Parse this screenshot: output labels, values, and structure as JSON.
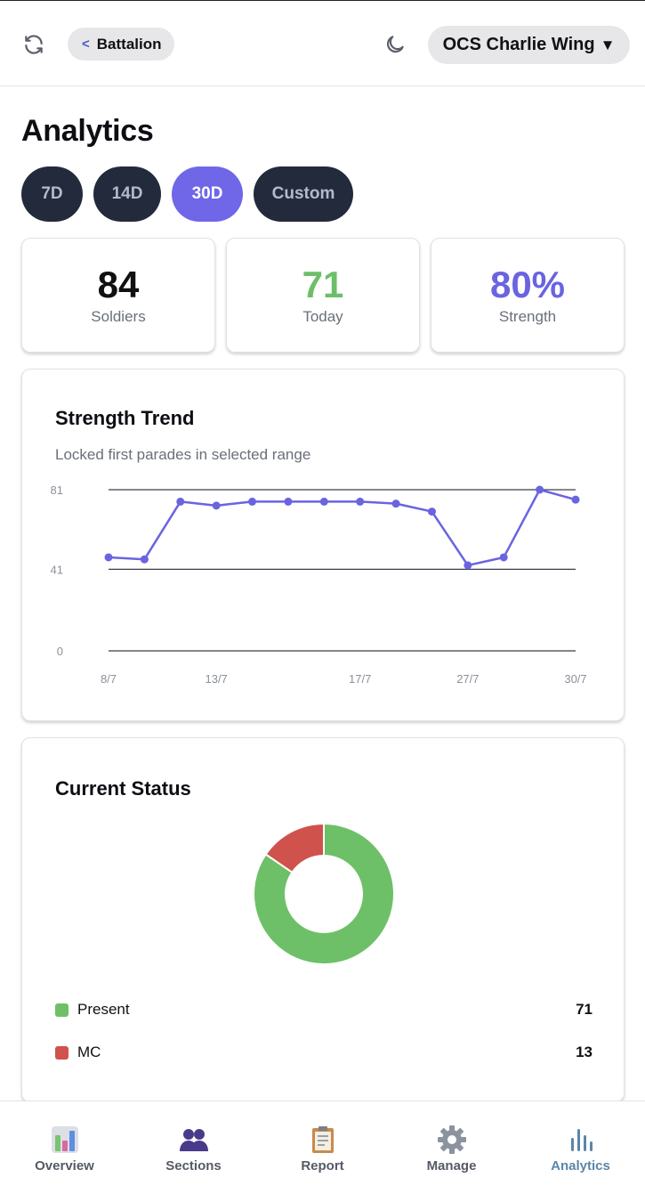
{
  "header": {
    "back_label": "Battalion",
    "unit_label": "OCS Charlie Wing",
    "unit_caret": "▼"
  },
  "page": {
    "title": "Analytics"
  },
  "ranges": [
    {
      "label": "7D",
      "active": false
    },
    {
      "label": "14D",
      "active": false
    },
    {
      "label": "30D",
      "active": true
    },
    {
      "label": "Custom",
      "active": false
    }
  ],
  "stats": [
    {
      "value": "84",
      "label": "Soldiers",
      "color": "#111111"
    },
    {
      "value": "71",
      "label": "Today",
      "color": "#6cbf68"
    },
    {
      "value": "80%",
      "label": "Strength",
      "color": "#6a64e0"
    }
  ],
  "trend": {
    "title": "Strength Trend",
    "subtitle": "Locked first parades in selected range"
  },
  "status": {
    "title": "Current Status",
    "items": [
      {
        "label": "Present",
        "value": "71",
        "color": "#6dc067"
      },
      {
        "label": "MC",
        "value": "13",
        "color": "#d0524c"
      }
    ]
  },
  "chart_data": [
    {
      "type": "line",
      "title": "Strength Trend",
      "subtitle": "Locked first parades in selected range",
      "x_ticks": [
        "8/7",
        "13/7",
        "17/7",
        "27/7",
        "30/7"
      ],
      "y_ticks": [
        0,
        41,
        81
      ],
      "ylim": [
        0,
        81
      ],
      "grid": true,
      "color": "#6a64e0",
      "values": [
        47,
        46,
        75,
        73,
        75,
        75,
        75,
        75,
        74,
        70,
        43,
        47,
        81,
        76
      ]
    },
    {
      "type": "pie",
      "title": "Current Status",
      "donut": true,
      "categories": [
        "Present",
        "MC"
      ],
      "values": [
        71,
        13
      ],
      "colors": [
        "#6dc067",
        "#d0524c"
      ]
    }
  ],
  "nav": [
    {
      "label": "Overview",
      "icon": "overview-icon",
      "active": false
    },
    {
      "label": "Sections",
      "icon": "sections-icon",
      "active": false
    },
    {
      "label": "Report",
      "icon": "report-icon",
      "active": false
    },
    {
      "label": "Manage",
      "icon": "manage-icon",
      "active": false
    },
    {
      "label": "Analytics",
      "icon": "analytics-icon",
      "active": true
    }
  ]
}
